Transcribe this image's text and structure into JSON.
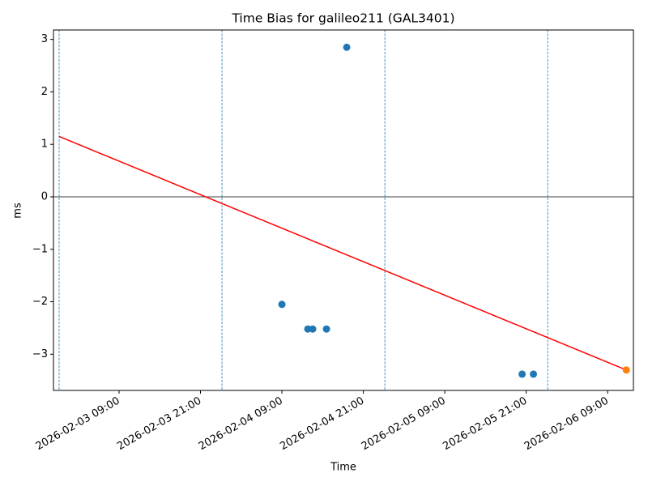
{
  "chart_data": {
    "type": "scatter",
    "title": "Time Bias for galileo211 (GAL3401)",
    "x_label": "Time",
    "y_label": "ms",
    "xlim": [
      "2026-02-02 23:20",
      "2026-02-06 12:48"
    ],
    "xticks": [
      "2026-02-03 09:00",
      "2026-02-03 21:00",
      "2026-02-04 09:00",
      "2026-02-04 21:00",
      "2026-02-05 09:00",
      "2026-02-05 21:00",
      "2026-02-06 09:00"
    ],
    "ylim": [
      -3.69,
      3.18
    ],
    "yticks": [
      {
        "value": -3,
        "label": "−3"
      },
      {
        "value": -2,
        "label": "−2"
      },
      {
        "value": -1,
        "label": "−1"
      },
      0,
      1,
      2,
      3
    ],
    "series": [
      {
        "color": "#1f77b4",
        "x": [
          "2026-02-04 09:00",
          "2026-02-04 12:49",
          "2026-02-04 13:32",
          "2026-02-04 15:34",
          "2026-02-04 18:33",
          "2026-02-05 20:24",
          "2026-02-05 22:04"
        ],
        "values": [
          -2.05,
          -2.52,
          -2.52,
          -2.52,
          2.85,
          -3.38,
          -3.38
        ]
      },
      {
        "color": "#ff7f0e",
        "x": [
          "2026-02-06 11:45"
        ],
        "values": [
          -3.3
        ]
      }
    ],
    "lines": [
      {
        "color": "#ff0000",
        "x": [
          "2026-02-03 00:10",
          "2026-02-06 11:45"
        ],
        "values": [
          1.15,
          -3.3
        ]
      }
    ],
    "vlines": {
      "color": "#1f77b4",
      "x": [
        "2026-02-03 00:10",
        "2026-02-04 00:10",
        "2026-02-05 00:10",
        "2026-02-06 00:10"
      ]
    },
    "hlines": {
      "color": "#000000",
      "values": [
        0
      ]
    }
  }
}
